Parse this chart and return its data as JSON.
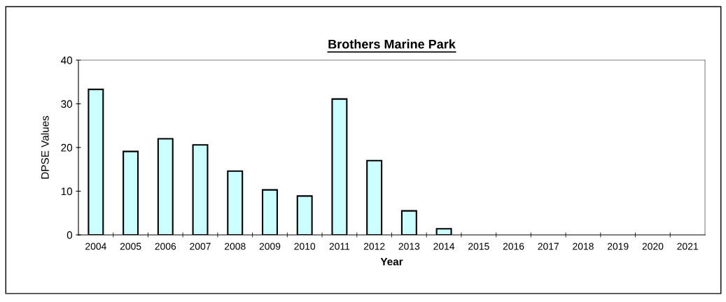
{
  "chart_data": {
    "type": "bar",
    "title": "Brothers Marine Park",
    "xlabel": "Year",
    "ylabel": "DPSE Values",
    "categories": [
      "2004",
      "2005",
      "2006",
      "2007",
      "2008",
      "2009",
      "2010",
      "2011",
      "2012",
      "2013",
      "2014",
      "2015",
      "2016",
      "2017",
      "2018",
      "2019",
      "2020",
      "2021"
    ],
    "values": [
      33.3,
      19.1,
      22.0,
      20.6,
      14.6,
      10.3,
      8.9,
      31.1,
      17.0,
      5.5,
      1.4,
      null,
      null,
      null,
      null,
      null,
      null,
      null
    ],
    "color": "#ccffff",
    "ylim": [
      0,
      40
    ],
    "yticks": [
      0,
      10,
      20,
      30,
      40
    ],
    "grid": false,
    "legend": false
  }
}
